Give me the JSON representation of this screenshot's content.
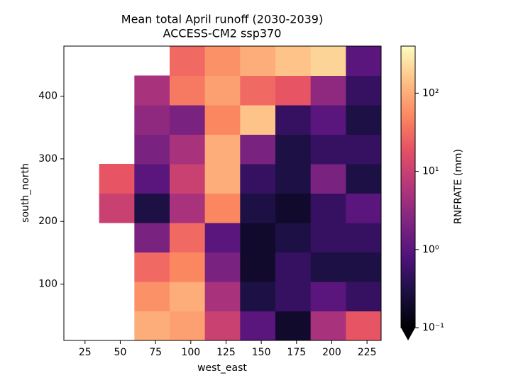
{
  "chart_data": {
    "type": "heatmap",
    "title": "Mean total April runoff (2030-2039)",
    "subtitle": "ACCESS-CM2 ssp370",
    "x_label": "west_east",
    "y_label": "south_north",
    "colorbar_label": "RNFRATE (mm)",
    "colormap": "magma",
    "color_scale": "log",
    "xlim": [
      10,
      235
    ],
    "ylim": [
      10,
      480
    ],
    "xticks": [
      25,
      50,
      75,
      100,
      125,
      150,
      175,
      200,
      225
    ],
    "yticks": [
      100,
      200,
      300,
      400
    ],
    "clim": [
      0.1,
      400
    ],
    "cticks": [
      {
        "value": 0.1,
        "label": "10⁻¹"
      },
      {
        "value": 1,
        "label": "10⁰"
      },
      {
        "value": 10,
        "label": "10¹"
      },
      {
        "value": 100,
        "label": "10²"
      }
    ],
    "xbins": [
      10,
      35,
      60,
      85,
      110,
      135,
      160,
      185,
      210,
      235
    ],
    "ybins": [
      10,
      57,
      104,
      151,
      198,
      245,
      292,
      339,
      386,
      433,
      480
    ],
    "z": [
      [
        null,
        null,
        100,
        80,
        10,
        1,
        0.2,
        5,
        20
      ],
      [
        null,
        null,
        60,
        100,
        5,
        0.3,
        0.5,
        1,
        0.5
      ],
      [
        null,
        null,
        30,
        50,
        2,
        0.2,
        0.5,
        0.3,
        0.3
      ],
      [
        null,
        null,
        2,
        30,
        1,
        0.2,
        0.3,
        0.5,
        0.5
      ],
      [
        null,
        10,
        0.3,
        5,
        50,
        0.3,
        0.2,
        0.5,
        1
      ],
      [
        null,
        20,
        1,
        10,
        100,
        0.5,
        0.3,
        2,
        0.3
      ],
      [
        null,
        null,
        2,
        5,
        100,
        2,
        0.3,
        0.5,
        0.5
      ],
      [
        null,
        null,
        3,
        2,
        50,
        150,
        0.5,
        1,
        0.3
      ],
      [
        null,
        null,
        5,
        40,
        80,
        30,
        20,
        3,
        0.5
      ],
      [
        null,
        null,
        null,
        30,
        60,
        100,
        150,
        200,
        1
      ]
    ]
  }
}
